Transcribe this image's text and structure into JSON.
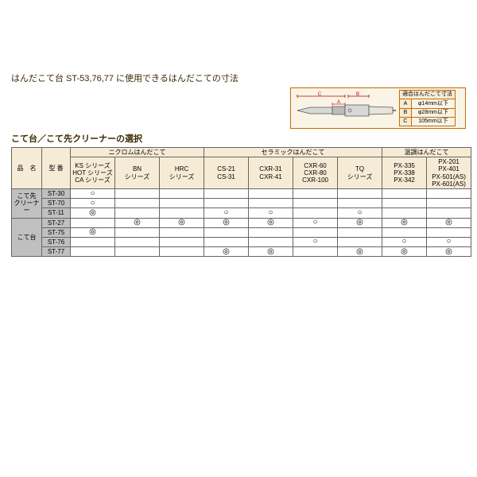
{
  "title": "はんだこて台 ST-53,76,77 に使用できるはんだこての寸法",
  "subtitle": "こて台／こて先クリーナーの選択",
  "spec": {
    "header": "適合はんだこて寸法",
    "rows": [
      {
        "k": "A",
        "v": "φ14mm以下"
      },
      {
        "k": "B",
        "v": "φ28mm以下"
      },
      {
        "k": "C",
        "v": "105mm以下"
      }
    ]
  },
  "diagram": {
    "labels": {
      "a": "A",
      "b": "B",
      "c": "C"
    }
  },
  "headers": {
    "name": "品　名",
    "model": "型 番",
    "group1": "ニクロムはんだこて",
    "group2": "セラミックはんだこて",
    "group3": "温調はんだこて",
    "cols": [
      "KS シリーズ\nHOT シリーズ\nCA シリーズ",
      "BN\nシリーズ",
      "HRC\nシリーズ",
      "CS-21\nCS-31",
      "CXR-31\nCXR-41",
      "CXR-60\nCXR-80\nCXR-100",
      "TQ\nシリーズ",
      "PX-335\nPX-338\nPX-342",
      "PX-201\nPX-401\nPX-501(AS)\nPX-601(AS)"
    ]
  },
  "row_categories": [
    {
      "label": "こて先\nクリーナー",
      "span": 3
    },
    {
      "label": "こて台",
      "span": 4
    }
  ],
  "rows": [
    {
      "model": "ST-30",
      "marks": [
        "○",
        "",
        "",
        "",
        "",
        "",
        "",
        "",
        ""
      ]
    },
    {
      "model": "ST-70",
      "marks": [
        "○",
        "",
        "",
        "",
        "",
        "",
        "",
        "",
        ""
      ]
    },
    {
      "model": "ST-11",
      "marks": [
        "◎",
        "",
        "",
        "○",
        "○",
        "",
        "○",
        "",
        ""
      ]
    },
    {
      "model": "ST-27",
      "marks": [
        "",
        "◎",
        "◎",
        "◎",
        "◎",
        "○",
        "◎",
        "◎",
        "◎"
      ]
    },
    {
      "model": "ST-75",
      "marks": [
        "◎",
        "",
        "",
        "",
        "",
        "",
        "",
        "",
        ""
      ]
    },
    {
      "model": "ST-76",
      "marks": [
        "",
        "",
        "",
        "",
        "",
        "○",
        "",
        "○",
        "○"
      ]
    },
    {
      "model": "ST-77",
      "marks": [
        "",
        "",
        "",
        "◎",
        "◎",
        "",
        "◎",
        "◎",
        "◎"
      ]
    }
  ],
  "colors": {
    "border": "#c46a00",
    "header_bg": "#f6ecd6",
    "row_bg": "#c0c0c0",
    "text_dark": "#3a2a00"
  }
}
